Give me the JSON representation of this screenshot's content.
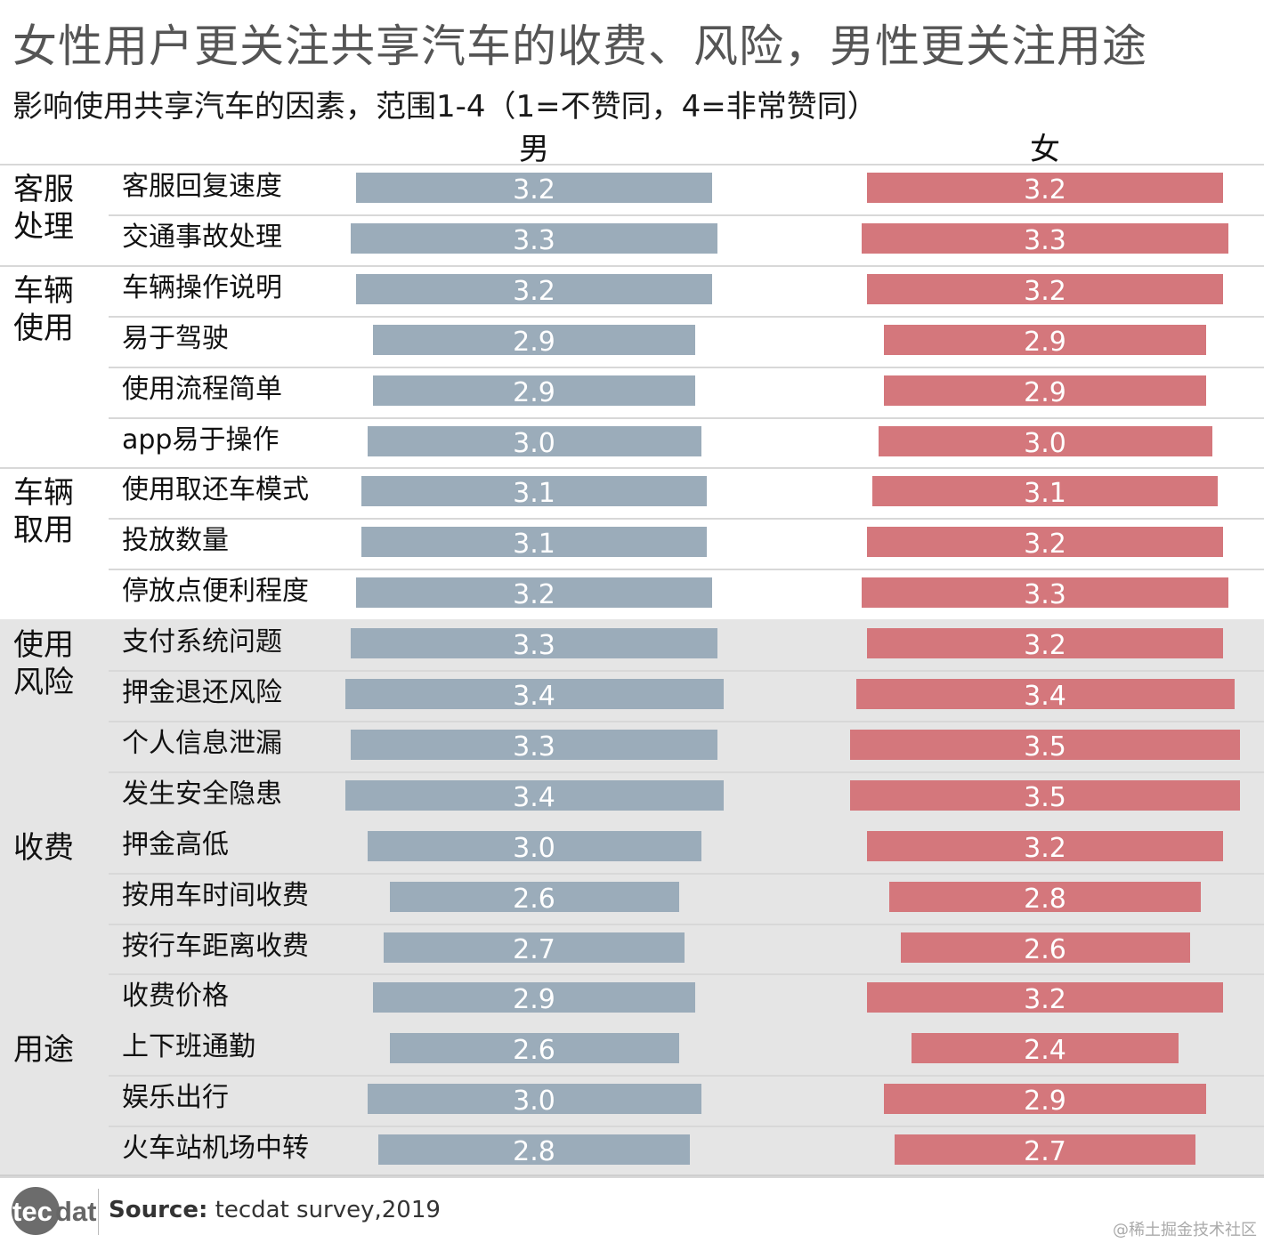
{
  "title": "女性用户更关注共享汽车的收费、风险，男性更关注用途",
  "subtitle": "影响使用共享汽车的因素，范围1-4（1=不赞同，4=非常赞同）",
  "footer": {
    "logo_text": "tecdat",
    "source_label": "Source:",
    "source_text": "tecdat survey,2019",
    "watermark": "@稀土掘金技术社区"
  },
  "colors": {
    "male": "#9bacba",
    "female": "#d4777c",
    "band": "#e5e5e5"
  },
  "chart_data": {
    "type": "bar",
    "title": "女性用户更关注共享汽车的收费、风险，男性更关注用途",
    "subtitle": "影响使用共享汽车的因素，范围1-4（1=不赞同，4=非常赞同）",
    "xlim": [
      1,
      4
    ],
    "column_headers": [
      "男",
      "女"
    ],
    "groups": [
      {
        "name": "客服\n处理",
        "shaded": false,
        "items": [
          {
            "label": "客服回复速度",
            "male": 3.2,
            "female": 3.2
          },
          {
            "label": "交通事故处理",
            "male": 3.3,
            "female": 3.3
          }
        ]
      },
      {
        "name": "车辆\n使用",
        "shaded": false,
        "items": [
          {
            "label": "车辆操作说明",
            "male": 3.2,
            "female": 3.2
          },
          {
            "label": "易于驾驶",
            "male": 2.9,
            "female": 2.9
          },
          {
            "label": "使用流程简单",
            "male": 2.9,
            "female": 2.9
          },
          {
            "label": "app易于操作",
            "male": 3.0,
            "female": 3.0
          }
        ]
      },
      {
        "name": "车辆\n取用",
        "shaded": false,
        "items": [
          {
            "label": "使用取还车模式",
            "male": 3.1,
            "female": 3.1
          },
          {
            "label": "投放数量",
            "male": 3.1,
            "female": 3.2
          },
          {
            "label": "停放点便利程度",
            "male": 3.2,
            "female": 3.3
          }
        ]
      },
      {
        "name": "使用\n风险",
        "shaded": true,
        "items": [
          {
            "label": "支付系统问题",
            "male": 3.3,
            "female": 3.2
          },
          {
            "label": "押金退还风险",
            "male": 3.4,
            "female": 3.4
          },
          {
            "label": "个人信息泄漏",
            "male": 3.3,
            "female": 3.5
          },
          {
            "label": "发生安全隐患",
            "male": 3.4,
            "female": 3.5
          }
        ]
      },
      {
        "name": "收费",
        "shaded": true,
        "items": [
          {
            "label": "押金高低",
            "male": 3.0,
            "female": 3.2
          },
          {
            "label": "按用车时间收费",
            "male": 2.6,
            "female": 2.8
          },
          {
            "label": "按行车距离收费",
            "male": 2.7,
            "female": 2.6
          },
          {
            "label": "收费价格",
            "male": 2.9,
            "female": 3.2
          }
        ]
      },
      {
        "name": "用途",
        "shaded": true,
        "items": [
          {
            "label": "上下班通勤",
            "male": 2.6,
            "female": 2.4
          },
          {
            "label": "娱乐出行",
            "male": 3.0,
            "female": 2.9
          },
          {
            "label": "火车站机场中转",
            "male": 2.8,
            "female": 2.7
          }
        ]
      }
    ]
  }
}
